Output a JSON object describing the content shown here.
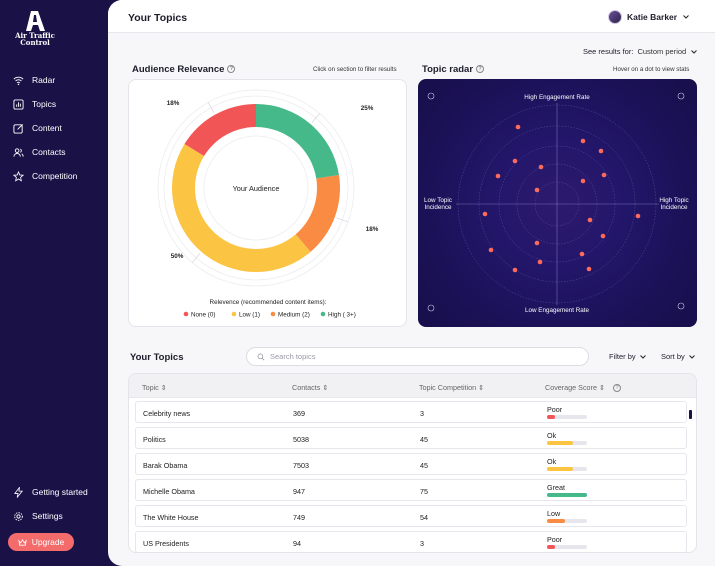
{
  "brand": {
    "name": "Air Traffic Control"
  },
  "nav": {
    "items": [
      {
        "label": "Radar",
        "icon": "wifi-icon"
      },
      {
        "label": "Topics",
        "icon": "chart-icon"
      },
      {
        "label": "Content",
        "icon": "edit-icon"
      },
      {
        "label": "Contacts",
        "icon": "users-icon"
      },
      {
        "label": "Competition",
        "icon": "star-icon"
      }
    ],
    "bottom": [
      {
        "label": "Getting started",
        "icon": "bolt-icon"
      },
      {
        "label": "Settings",
        "icon": "gear-icon"
      }
    ],
    "upgrade_label": "Upgrade"
  },
  "header": {
    "title": "Your Topics",
    "user_name": "Katie Barker"
  },
  "period": {
    "label": "See results for:",
    "value": "Custom period"
  },
  "audience": {
    "title": "Audience Relevance",
    "hint": "Click on section to filter results",
    "center_label": "Your Audience",
    "legend_title": "Relevence (recommended content items):"
  },
  "radar": {
    "title": "Topic radar",
    "hint": "Hover on a dot to view stats",
    "top_label": "High Engagement Rate",
    "bottom_label": "Low Engagement Rate",
    "left_label_1": "Low Topic",
    "left_label_2": "Incidence",
    "right_label_1": "High Topic",
    "right_label_2": "Incidence"
  },
  "chart_data": {
    "type": "pie",
    "slices": [
      {
        "name": "None (0)",
        "value": 18,
        "label": "18%",
        "color": "#f25555"
      },
      {
        "name": "Low (1)",
        "value": 50,
        "label": "50%",
        "color": "#fcc443"
      },
      {
        "name": "Medium (2)",
        "value": 18,
        "label": "18%",
        "color": "#f98b42"
      },
      {
        "name": "High ( 3+)",
        "value": 25,
        "label": "25%",
        "color": "#46b98a"
      }
    ]
  },
  "topics": {
    "title": "Your Topics",
    "search_placeholder": "Search topics",
    "filter_label": "Filter by",
    "sort_label": "Sort by",
    "columns": [
      "Topic",
      "Contacts",
      "Topic Competition",
      "Coverage Score"
    ],
    "rows": [
      {
        "topic": "Celebrity news",
        "contacts": "369",
        "competition": "3",
        "score": "Poor",
        "level": 0.2,
        "color": "#f25555"
      },
      {
        "topic": "Politics",
        "contacts": "5038",
        "competition": "45",
        "score": "Ok",
        "level": 0.65,
        "color": "#fcc443"
      },
      {
        "topic": "Barak Obama",
        "contacts": "7503",
        "competition": "45",
        "score": "Ok",
        "level": 0.65,
        "color": "#fcc443"
      },
      {
        "topic": "Michelle Obama",
        "contacts": "947",
        "competition": "75",
        "score": "Great",
        "level": 1.0,
        "color": "#46b98a"
      },
      {
        "topic": "The White House",
        "contacts": "749",
        "competition": "54",
        "score": "Low",
        "level": 0.45,
        "color": "#f98b42"
      },
      {
        "topic": "US Presidents",
        "contacts": "94",
        "competition": "3",
        "score": "Poor",
        "level": 0.2,
        "color": "#f25555"
      }
    ]
  }
}
